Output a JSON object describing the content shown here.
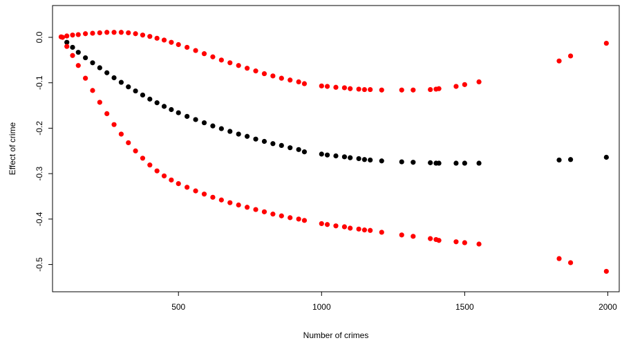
{
  "chart_data": {
    "type": "scatter",
    "title": "",
    "xlabel": "Number of crimes",
    "ylabel": "Effect of crime",
    "xlim": [
      60,
      2040
    ],
    "ylim": [
      -0.56,
      0.07
    ],
    "x_ticks": [
      500,
      1000,
      1500,
      2000
    ],
    "x_tick_labels": [
      "500",
      "1000",
      "1500",
      "2000"
    ],
    "y_ticks": [
      0.0,
      -0.1,
      -0.2,
      -0.3,
      -0.4,
      -0.5
    ],
    "y_tick_labels": [
      "0.0",
      "-0.1",
      "-0.2",
      "-0.3",
      "-0.4",
      "-0.5"
    ],
    "grid": false,
    "legend": "none",
    "colors": {
      "estimate": "#000000",
      "bounds": "#ff0000"
    },
    "series": [
      {
        "role": "estimate",
        "color": "#000000",
        "points": [
          [
            110,
            -0.011
          ],
          [
            130,
            -0.022
          ],
          [
            150,
            -0.033
          ],
          [
            175,
            -0.045
          ],
          [
            200,
            -0.056
          ],
          [
            225,
            -0.067
          ],
          [
            250,
            -0.078
          ],
          [
            275,
            -0.089
          ],
          [
            300,
            -0.099
          ],
          [
            325,
            -0.109
          ],
          [
            350,
            -0.118
          ],
          [
            375,
            -0.127
          ],
          [
            400,
            -0.136
          ],
          [
            425,
            -0.144
          ],
          [
            450,
            -0.152
          ],
          [
            475,
            -0.159
          ],
          [
            500,
            -0.166
          ],
          [
            530,
            -0.174
          ],
          [
            560,
            -0.181
          ],
          [
            590,
            -0.188
          ],
          [
            620,
            -0.195
          ],
          [
            650,
            -0.201
          ],
          [
            680,
            -0.207
          ],
          [
            710,
            -0.213
          ],
          [
            740,
            -0.218
          ],
          [
            770,
            -0.224
          ],
          [
            800,
            -0.229
          ],
          [
            830,
            -0.234
          ],
          [
            860,
            -0.238
          ],
          [
            890,
            -0.243
          ],
          [
            920,
            -0.247
          ],
          [
            940,
            -0.252
          ],
          [
            1000,
            -0.257
          ],
          [
            1020,
            -0.259
          ],
          [
            1050,
            -0.261
          ],
          [
            1080,
            -0.263
          ],
          [
            1100,
            -0.265
          ],
          [
            1130,
            -0.267
          ],
          [
            1150,
            -0.269
          ],
          [
            1170,
            -0.27
          ],
          [
            1210,
            -0.272
          ],
          [
            1280,
            -0.274
          ],
          [
            1320,
            -0.275
          ],
          [
            1380,
            -0.276
          ],
          [
            1400,
            -0.277
          ],
          [
            1410,
            -0.277
          ],
          [
            1470,
            -0.277
          ],
          [
            1500,
            -0.277
          ],
          [
            1550,
            -0.277
          ],
          [
            1830,
            -0.27
          ],
          [
            1870,
            -0.269
          ],
          [
            1995,
            -0.264
          ]
        ]
      },
      {
        "role": "upper",
        "color": "#ff0000",
        "points": [
          [
            90,
            0.001
          ],
          [
            110,
            0.003
          ],
          [
            130,
            0.005
          ],
          [
            150,
            0.006
          ],
          [
            175,
            0.008
          ],
          [
            200,
            0.009
          ],
          [
            225,
            0.01
          ],
          [
            250,
            0.011
          ],
          [
            275,
            0.011
          ],
          [
            300,
            0.011
          ],
          [
            325,
            0.01
          ],
          [
            350,
            0.008
          ],
          [
            375,
            0.005
          ],
          [
            400,
            0.002
          ],
          [
            425,
            -0.002
          ],
          [
            450,
            -0.006
          ],
          [
            475,
            -0.011
          ],
          [
            500,
            -0.016
          ],
          [
            530,
            -0.022
          ],
          [
            560,
            -0.029
          ],
          [
            590,
            -0.036
          ],
          [
            620,
            -0.043
          ],
          [
            650,
            -0.05
          ],
          [
            680,
            -0.056
          ],
          [
            710,
            -0.062
          ],
          [
            740,
            -0.068
          ],
          [
            770,
            -0.074
          ],
          [
            800,
            -0.08
          ],
          [
            830,
            -0.085
          ],
          [
            860,
            -0.09
          ],
          [
            890,
            -0.094
          ],
          [
            920,
            -0.098
          ],
          [
            940,
            -0.102
          ],
          [
            1000,
            -0.107
          ],
          [
            1020,
            -0.108
          ],
          [
            1050,
            -0.11
          ],
          [
            1080,
            -0.111
          ],
          [
            1100,
            -0.113
          ],
          [
            1130,
            -0.114
          ],
          [
            1150,
            -0.115
          ],
          [
            1170,
            -0.115
          ],
          [
            1210,
            -0.116
          ],
          [
            1280,
            -0.116
          ],
          [
            1320,
            -0.116
          ],
          [
            1380,
            -0.115
          ],
          [
            1400,
            -0.114
          ],
          [
            1410,
            -0.113
          ],
          [
            1470,
            -0.108
          ],
          [
            1500,
            -0.104
          ],
          [
            1550,
            -0.098
          ],
          [
            1830,
            -0.052
          ],
          [
            1870,
            -0.041
          ],
          [
            1995,
            -0.013
          ]
        ]
      },
      {
        "role": "lower",
        "color": "#ff0000",
        "points": [
          [
            95,
            0.0
          ],
          [
            110,
            -0.02
          ],
          [
            130,
            -0.04
          ],
          [
            150,
            -0.062
          ],
          [
            175,
            -0.09
          ],
          [
            200,
            -0.117
          ],
          [
            225,
            -0.143
          ],
          [
            250,
            -0.168
          ],
          [
            275,
            -0.192
          ],
          [
            300,
            -0.213
          ],
          [
            325,
            -0.232
          ],
          [
            350,
            -0.25
          ],
          [
            375,
            -0.266
          ],
          [
            400,
            -0.281
          ],
          [
            425,
            -0.294
          ],
          [
            450,
            -0.305
          ],
          [
            475,
            -0.314
          ],
          [
            500,
            -0.322
          ],
          [
            530,
            -0.33
          ],
          [
            560,
            -0.338
          ],
          [
            590,
            -0.345
          ],
          [
            620,
            -0.352
          ],
          [
            650,
            -0.358
          ],
          [
            680,
            -0.364
          ],
          [
            710,
            -0.369
          ],
          [
            740,
            -0.374
          ],
          [
            770,
            -0.379
          ],
          [
            800,
            -0.384
          ],
          [
            830,
            -0.389
          ],
          [
            860,
            -0.393
          ],
          [
            890,
            -0.397
          ],
          [
            920,
            -0.4
          ],
          [
            940,
            -0.403
          ],
          [
            1000,
            -0.41
          ],
          [
            1020,
            -0.412
          ],
          [
            1050,
            -0.415
          ],
          [
            1080,
            -0.417
          ],
          [
            1100,
            -0.42
          ],
          [
            1130,
            -0.422
          ],
          [
            1150,
            -0.424
          ],
          [
            1170,
            -0.425
          ],
          [
            1210,
            -0.429
          ],
          [
            1280,
            -0.435
          ],
          [
            1320,
            -0.438
          ],
          [
            1380,
            -0.443
          ],
          [
            1400,
            -0.445
          ],
          [
            1410,
            -0.447
          ],
          [
            1470,
            -0.45
          ],
          [
            1500,
            -0.452
          ],
          [
            1550,
            -0.455
          ],
          [
            1830,
            -0.487
          ],
          [
            1870,
            -0.496
          ],
          [
            1995,
            -0.515
          ]
        ]
      }
    ]
  }
}
